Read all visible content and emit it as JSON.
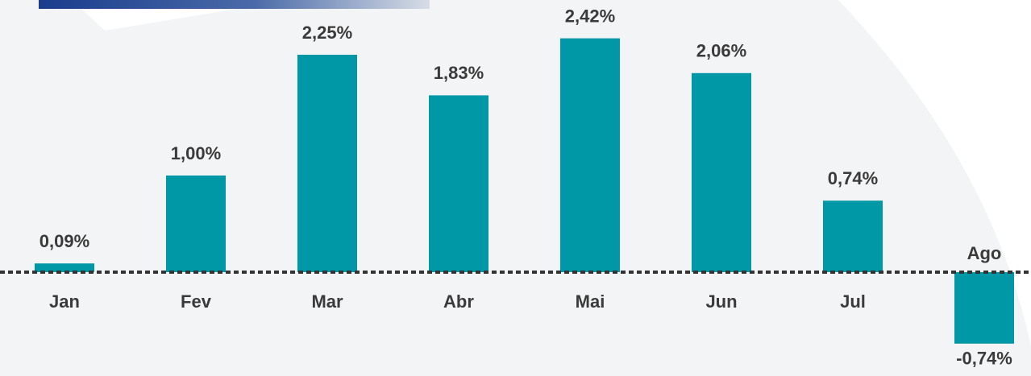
{
  "chart_data": {
    "type": "bar",
    "categories": [
      "Jan",
      "Fev",
      "Mar",
      "Abr",
      "Mai",
      "Jun",
      "Jul",
      "Ago"
    ],
    "values": [
      0.09,
      1.0,
      2.25,
      1.83,
      2.42,
      2.06,
      0.74,
      -0.74
    ],
    "value_labels": [
      "0,09%",
      "1,00%",
      "2,25%",
      "1,83%",
      "2,42%",
      "2,06%",
      "0,74%",
      "-0,74%"
    ],
    "color": "#0097a7"
  }
}
